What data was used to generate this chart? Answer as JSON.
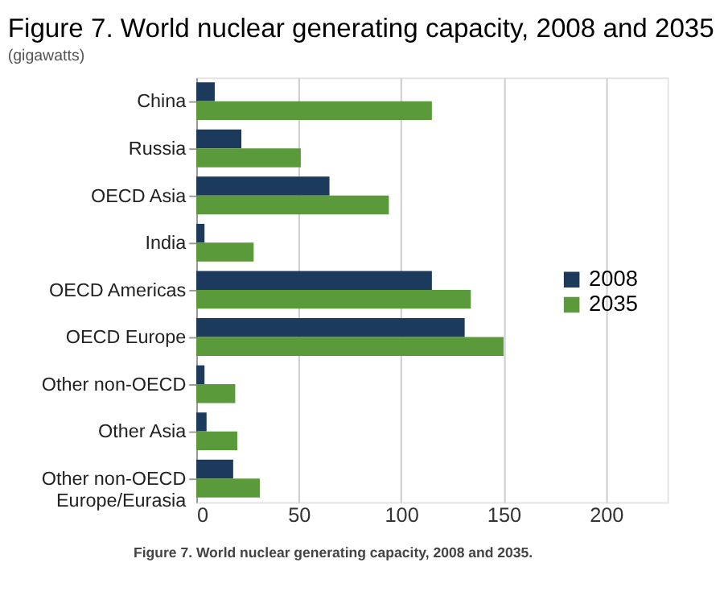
{
  "chart_data": {
    "type": "bar",
    "orientation": "horizontal",
    "title": "Figure 7. World nuclear generating capacity, 2008 and 2035",
    "subtitle": "(gigawatts)",
    "categories": [
      "China",
      "Russia",
      "OECD Asia",
      "India",
      "OECD Americas",
      "OECD Europe",
      "Other non-OECD",
      "Other Asia",
      "Other non-OECD Europe/Eurasia"
    ],
    "series": [
      {
        "name": "2008",
        "color": "#1b3a5c",
        "values": [
          9,
          22,
          65,
          4,
          115,
          131,
          4,
          5,
          18
        ]
      },
      {
        "name": "2035",
        "color": "#5b9a3a",
        "values": [
          115,
          51,
          94,
          28,
          134,
          150,
          19,
          20,
          31
        ]
      }
    ],
    "xlim": [
      0,
      230
    ],
    "xticks": [
      0,
      50,
      100,
      150,
      200
    ],
    "grid": "x",
    "legend": "right",
    "annotations": [
      "Figure 7. World nuclear generating capacity, 2008 and 2035."
    ]
  }
}
